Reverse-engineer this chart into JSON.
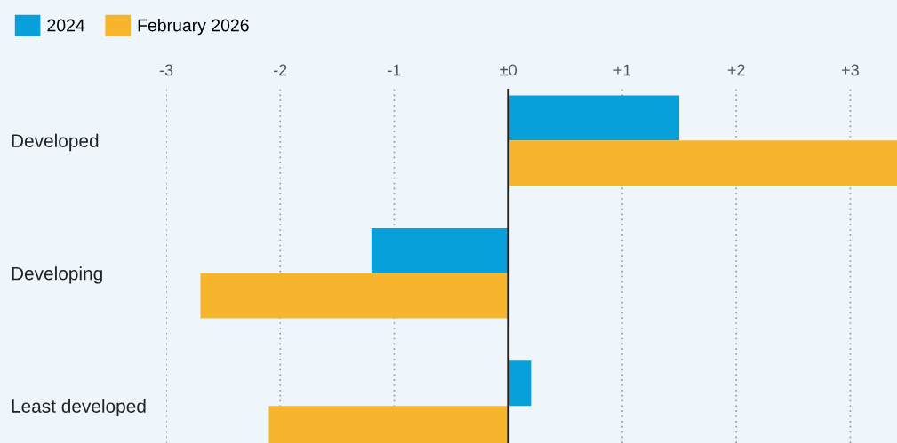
{
  "chart_data": {
    "type": "bar",
    "orientation": "horizontal",
    "categories": [
      "Developed",
      "Developing",
      "Least developed"
    ],
    "series": [
      {
        "name": "2024",
        "color": "#08a0db",
        "values": [
          1.5,
          -1.2,
          0.2
        ]
      },
      {
        "name": "February 2026",
        "color": "#f7b52e",
        "values": [
          3.41,
          -2.7,
          -2.1
        ]
      }
    ],
    "xlim": [
      -3,
      3.41
    ],
    "xticks": [
      {
        "value": -3,
        "label": "-3"
      },
      {
        "value": -2,
        "label": "-2"
      },
      {
        "value": -1,
        "label": "-1"
      },
      {
        "value": 0,
        "label": "±0"
      },
      {
        "value": 1,
        "label": "+1"
      },
      {
        "value": 2,
        "label": "+2"
      },
      {
        "value": 3,
        "label": "+3"
      }
    ],
    "ref_lines": [
      {
        "axis": "x",
        "value": 0,
        "color": "#222222"
      }
    ],
    "grid": "x",
    "legend": "top left"
  }
}
